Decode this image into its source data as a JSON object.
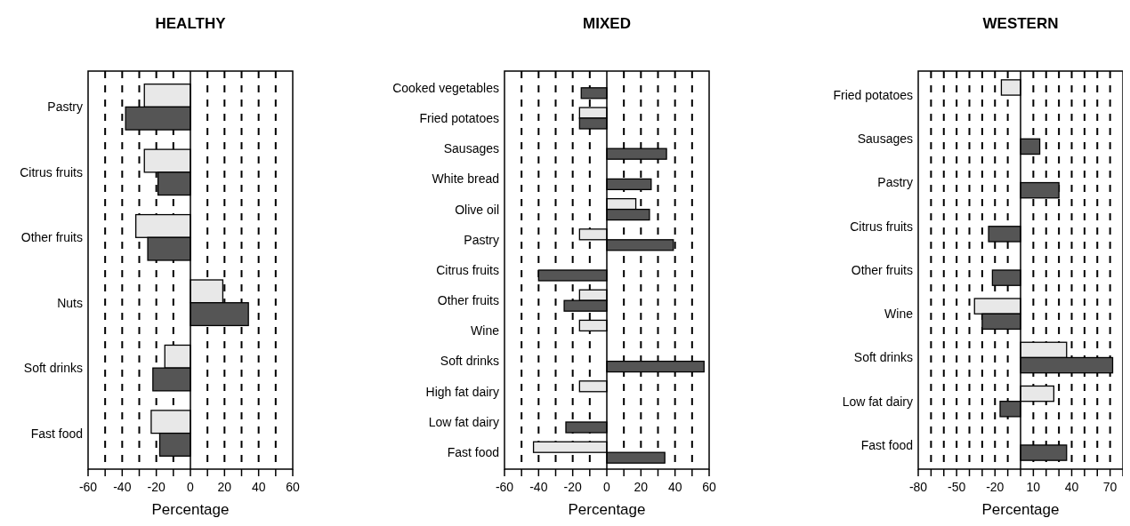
{
  "chart_data": [
    {
      "type": "bar",
      "orientation": "horizontal",
      "title": "HEALTHY",
      "xlabel": "Percentage",
      "categories": [
        "Pastry",
        "Citrus fruits",
        "Other fruits",
        "Nuts",
        "Soft drinks",
        "Fast food"
      ],
      "series": [
        {
          "color": "#e8e8e8",
          "values": [
            -27,
            -27,
            -32,
            19,
            -15,
            -23
          ]
        },
        {
          "color": "#555555",
          "values": [
            -38,
            -19,
            -25,
            34,
            -22,
            -18
          ]
        }
      ],
      "xlim": [
        -60,
        60
      ],
      "xticks": [
        -60,
        {
          "value": -50,
          "label": null
        },
        -40,
        {
          "value": -30,
          "label": null
        },
        -20,
        {
          "value": -10,
          "label": null
        },
        0,
        {
          "value": 10,
          "label": null
        },
        20,
        {
          "value": 30,
          "label": null
        },
        40,
        {
          "value": 50,
          "label": null
        },
        60
      ],
      "grid": "x"
    },
    {
      "type": "bar",
      "orientation": "horizontal",
      "title": "MIXED",
      "xlabel": "Percentage",
      "categories": [
        "Cooked vegetables",
        "Fried potatoes",
        "Sausages",
        "White bread",
        "Olive oil",
        "Pastry",
        "Citrus fruits",
        "Other fruits",
        "Wine",
        "Soft drinks",
        "High fat dairy",
        "Low fat dairy",
        "Fast food"
      ],
      "series": [
        {
          "color": "#e8e8e8",
          "values": [
            null,
            -16,
            null,
            null,
            17,
            -16,
            null,
            -16,
            -16,
            null,
            -16,
            null,
            -43
          ]
        },
        {
          "color": "#555555",
          "values": [
            -15,
            -16,
            35,
            26,
            25,
            39,
            -40,
            -25,
            null,
            57,
            null,
            -24,
            34
          ]
        }
      ],
      "xlim": [
        -60,
        60
      ],
      "xticks": [
        -60,
        {
          "value": -50,
          "label": null
        },
        -40,
        {
          "value": -30,
          "label": null
        },
        -20,
        {
          "value": -10,
          "label": null
        },
        0,
        {
          "value": 10,
          "label": null
        },
        20,
        {
          "value": 30,
          "label": null
        },
        40,
        {
          "value": 50,
          "label": null
        },
        60
      ],
      "grid": "x"
    },
    {
      "type": "bar",
      "orientation": "horizontal",
      "title": "WESTERN",
      "xlabel": "Percentage",
      "categories": [
        "Fried potatoes",
        "Sausages",
        "Pastry",
        "Citrus fruits",
        "Other fruits",
        "Wine",
        "Soft drinks",
        "Low fat dairy",
        "Fast food"
      ],
      "series": [
        {
          "color": "#e8e8e8",
          "values": [
            -15,
            null,
            null,
            null,
            null,
            -36,
            36,
            26,
            null
          ]
        },
        {
          "color": "#555555",
          "values": [
            null,
            15,
            30,
            -25,
            -22,
            -30,
            72,
            -16,
            36
          ]
        }
      ],
      "xlim": [
        -80,
        80
      ],
      "xticks": [
        -80,
        {
          "value": -70,
          "label": null
        },
        {
          "value": -60,
          "label": null
        },
        -50,
        {
          "value": -40,
          "label": null
        },
        {
          "value": -30,
          "label": null
        },
        -20,
        {
          "value": -10,
          "label": null
        },
        {
          "value": 0,
          "label": null
        },
        10,
        {
          "value": 20,
          "label": null
        },
        {
          "value": 30,
          "label": null
        },
        40,
        {
          "value": 50,
          "label": null
        },
        {
          "value": 60,
          "label": null
        },
        70,
        {
          "value": 80,
          "label": null
        }
      ],
      "grid": "x"
    }
  ]
}
